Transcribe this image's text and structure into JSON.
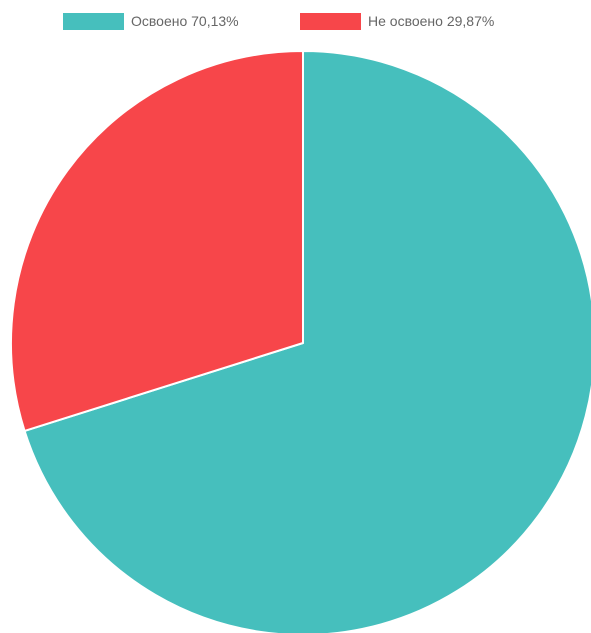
{
  "chart_data": {
    "type": "pie",
    "labels": [
      "Освоено 70,13%",
      "Не освоено 29,87%"
    ],
    "values": [
      70.13,
      29.87
    ],
    "colors": [
      "#46BFBD",
      "#F7464A"
    ],
    "slice_border_color": "#ffffff",
    "start_angle": "top",
    "direction": "clockwise",
    "legend_position": "top"
  }
}
